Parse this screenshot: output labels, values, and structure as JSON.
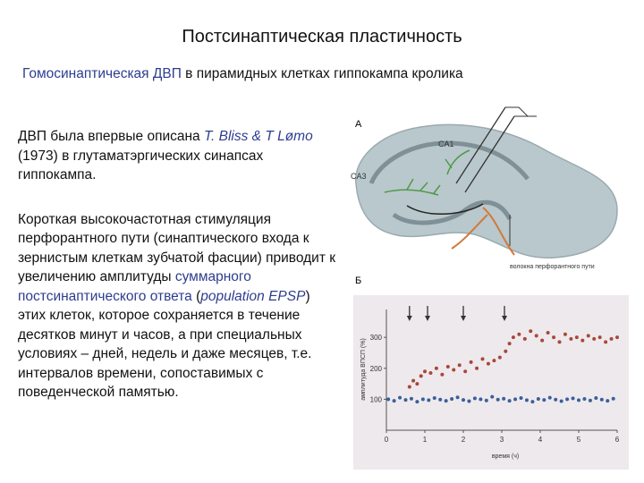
{
  "header": {
    "title": "Постсинаптическая пластичность",
    "subtitle": [
      {
        "text": "Гомосинаптическая ДВП",
        "style": "link"
      },
      {
        "text": " в пирамидных клетках гиппокампа кролика",
        "style": "plain"
      }
    ]
  },
  "body": {
    "paragraphs": [
      [
        {
          "text": "ДВП была впервые описана ",
          "style": "plain"
        },
        {
          "text": "T. Bliss & T Lømo",
          "style": "italic-link"
        },
        {
          "text": " (1973) в глутаматэргических синапсах гиппокампа.",
          "style": "plain"
        }
      ],
      [
        {
          "text": "Короткая высокочастотная стимуляция перфорантного пути (синаптического входа к зернистым клеткам зубчатой фасции) приводит к увеличению амплитуды ",
          "style": "plain"
        },
        {
          "text": "суммарного постсинаптического ответа",
          "style": "link"
        },
        {
          "text": " (",
          "style": "plain"
        },
        {
          "text": "population EPSP",
          "style": "italic-link"
        },
        {
          "text": ") этих клеток, которое сохраняется в течение десятков минут и часов, а при специальных условиях – дней, недель и даже месяцев, т.е. интервалов времени, сопоставимых с поведенческой памятью.",
          "style": "plain"
        }
      ]
    ]
  },
  "figure_a": {
    "label": "А",
    "region_1": "CA1",
    "region_3": "CA3",
    "caption": "волокна перфорантного пути"
  },
  "figure_b": {
    "label": "Б"
  },
  "chart_data": {
    "type": "scatter",
    "xlabel": "время (ч)",
    "ylabel": "амплитуда ВПСП (%)",
    "xlim": [
      0,
      6
    ],
    "xticks": [
      0,
      1,
      2,
      3,
      4,
      5,
      6
    ],
    "ylim": [
      0,
      390
    ],
    "yticks": [
      100,
      200,
      300
    ],
    "stimulus_times": [
      0.6,
      1.07,
      2,
      3.07
    ],
    "stimulus_color": "#333333",
    "series": [
      {
        "color": "#3a5f9a",
        "x": [
          0.05,
          0.2,
          0.35,
          0.5,
          0.65,
          0.8,
          0.95,
          1.1,
          1.25,
          1.4,
          1.55,
          1.7,
          1.85,
          2.0,
          2.15,
          2.3,
          2.45,
          2.6,
          2.75,
          2.9,
          3.05,
          3.2,
          3.35,
          3.5,
          3.65,
          3.8,
          3.95,
          4.1,
          4.25,
          4.4,
          4.55,
          4.7,
          4.85,
          5.0,
          5.15,
          5.3,
          5.45,
          5.6,
          5.75,
          5.9
        ],
        "values": [
          100,
          95,
          105,
          98,
          102,
          92,
          100,
          97,
          104,
          99,
          95,
          101,
          106,
          98,
          94,
          103,
          100,
          96,
          108,
          99,
          102,
          95,
          100,
          104,
          97,
          92,
          101,
          98,
          105,
          99,
          94,
          100,
          103,
          97,
          101,
          96,
          104,
          99,
          95,
          102
        ]
      },
      {
        "color": "#a8483a",
        "x": [
          0.6,
          0.7,
          0.8,
          0.9,
          1.0,
          1.15,
          1.3,
          1.45,
          1.6,
          1.75,
          1.9,
          2.05,
          2.2,
          2.35,
          2.5,
          2.65,
          2.8,
          2.95,
          3.1,
          3.2,
          3.3,
          3.45,
          3.6,
          3.75,
          3.9,
          4.05,
          4.2,
          4.35,
          4.5,
          4.65,
          4.8,
          4.95,
          5.1,
          5.25,
          5.4,
          5.55,
          5.7,
          5.85,
          6.0
        ],
        "values": [
          140,
          160,
          150,
          175,
          190,
          185,
          200,
          180,
          205,
          195,
          210,
          190,
          220,
          200,
          230,
          215,
          225,
          235,
          255,
          280,
          300,
          310,
          295,
          320,
          305,
          290,
          315,
          300,
          285,
          310,
          295,
          300,
          290,
          305,
          295,
          300,
          285,
          295,
          300
        ]
      }
    ]
  }
}
